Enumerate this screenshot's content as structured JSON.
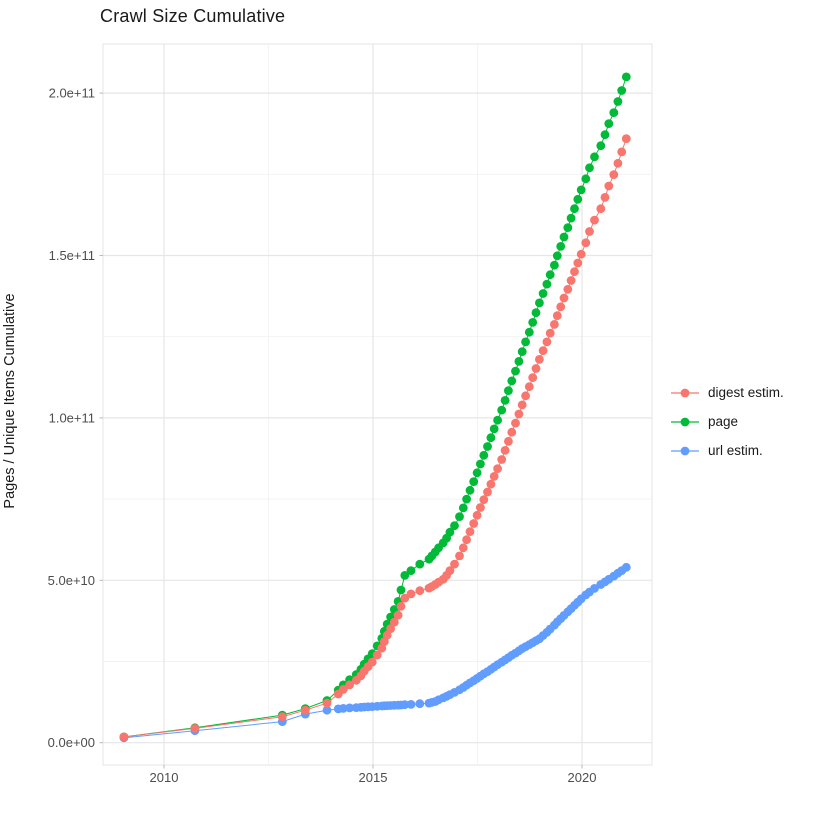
{
  "title": "Crawl Size Cumulative",
  "axes": {
    "y_label": "Pages / Unique Items Cumulative",
    "x_tick_labels": [
      "2010",
      "2015",
      "2020"
    ],
    "y_tick_labels": [
      "0.0e+00",
      "5.0e+10",
      "1.0e+11",
      "1.5e+11",
      "2.0e+11"
    ]
  },
  "legend": {
    "items": [
      {
        "label": "digest estim.",
        "color": "#F8766D"
      },
      {
        "label": "page",
        "color": "#00BA38"
      },
      {
        "label": "url estim.",
        "color": "#619CFF"
      }
    ]
  },
  "colors": {
    "digest": "#F8766D",
    "page": "#00BA38",
    "url": "#619CFF",
    "grid_major": "#E6E6E6",
    "grid_minor": "#F2F2F2",
    "panel_border": "#E4E4E4",
    "tick_mark": "#B8B8B8",
    "tick_text": "#4d4d4d",
    "title_text": "#1a1a1a"
  },
  "chart_data": {
    "type": "scatter",
    "title": "Crawl Size Cumulative",
    "xlabel": "",
    "ylabel": "Pages / Unique Items Cumulative",
    "legend_position": "right",
    "grid": true,
    "value_unit": "1e9 (values stored in billions)",
    "xlim": [
      2008.45,
      2021.65
    ],
    "ylim": [
      -8000000000,
      215000000000
    ],
    "x_ticks": {
      "major": [
        2010,
        2015,
        2020
      ],
      "minor": [
        2012.5,
        2017.5
      ],
      "labels": [
        "2010",
        "2015",
        "2020"
      ]
    },
    "y_ticks": {
      "major": [
        0,
        50,
        100,
        150,
        200
      ],
      "minor": [
        25,
        75,
        125,
        175
      ],
      "labels": [
        "0.0e+00",
        "5.0e+10",
        "1.0e+11",
        "1.5e+11",
        "2.0e+11"
      ]
    },
    "years": [
      2009.04,
      2010.74,
      2012.83,
      2013.38,
      2013.9,
      2014.17,
      2014.29,
      2014.44,
      2014.6,
      2014.71,
      2014.79,
      2014.88,
      2014.98,
      2015.1,
      2015.21,
      2015.27,
      2015.34,
      2015.42,
      2015.51,
      2015.6,
      2015.67,
      2015.76,
      2015.91,
      2016.12,
      2016.34,
      2016.41,
      2016.49,
      2016.57,
      2016.68,
      2016.76,
      2016.84,
      2016.95,
      2017.07,
      2017.16,
      2017.24,
      2017.32,
      2017.41,
      2017.49,
      2017.57,
      2017.65,
      2017.74,
      2017.82,
      2017.9,
      2017.98,
      2018.08,
      2018.16,
      2018.24,
      2018.32,
      2018.41,
      2018.49,
      2018.57,
      2018.65,
      2018.74,
      2018.82,
      2018.9,
      2018.98,
      2019.07,
      2019.16,
      2019.24,
      2019.34,
      2019.41,
      2019.49,
      2019.57,
      2019.66,
      2019.74,
      2019.82,
      2019.9,
      2019.98,
      2020.09,
      2020.18,
      2020.3,
      2020.45,
      2020.55,
      2020.64,
      2020.76,
      2020.86,
      2020.95,
      2021.06
    ],
    "series": [
      {
        "name": "digest estim.",
        "color": "#F8766D",
        "values": [
          1.8,
          4.4,
          8.0,
          10.0,
          12.2,
          15.0,
          16.4,
          17.8,
          19.2,
          20.6,
          22.0,
          23.4,
          24.8,
          27.0,
          29.1,
          31.1,
          33.1,
          35.1,
          37.1,
          39.3,
          42.0,
          44.5,
          45.8,
          46.8,
          47.6,
          48.1,
          48.7,
          49.4,
          50.3,
          51.5,
          53.0,
          55.0,
          57.5,
          60.0,
          62.5,
          65.0,
          67.5,
          70.0,
          72.4,
          74.8,
          77.2,
          79.6,
          82.0,
          84.4,
          87.2,
          90.0,
          92.8,
          95.6,
          98.4,
          101.2,
          104.0,
          106.8,
          109.6,
          112.4,
          115.2,
          118.0,
          120.7,
          123.4,
          126.1,
          128.8,
          131.5,
          134.2,
          136.9,
          139.6,
          142.3,
          145.0,
          147.7,
          150.4,
          153.9,
          157.4,
          160.9,
          164.4,
          167.9,
          171.4,
          174.9,
          178.4,
          181.9,
          186.0
        ]
      },
      {
        "name": "page",
        "color": "#00BA38",
        "values": [
          1.8,
          4.6,
          8.5,
          10.5,
          13.0,
          16.2,
          17.8,
          19.4,
          21.0,
          22.6,
          24.2,
          25.8,
          27.4,
          29.8,
          32.1,
          34.3,
          36.5,
          38.7,
          41.0,
          43.5,
          47.0,
          51.5,
          53.0,
          55.0,
          56.5,
          57.5,
          58.7,
          60.0,
          61.5,
          63.0,
          64.8,
          66.8,
          69.6,
          72.3,
          75.0,
          77.7,
          80.4,
          83.1,
          85.8,
          88.5,
          91.2,
          93.9,
          96.6,
          99.3,
          102.4,
          105.4,
          108.4,
          111.4,
          114.4,
          117.4,
          120.4,
          123.4,
          126.4,
          129.4,
          132.4,
          135.4,
          138.3,
          141.2,
          144.1,
          147.0,
          149.9,
          152.8,
          155.7,
          158.6,
          161.5,
          164.4,
          167.3,
          170.2,
          173.6,
          177.0,
          180.4,
          183.8,
          187.2,
          190.6,
          194.0,
          197.4,
          200.8,
          205.0
        ]
      },
      {
        "name": "url estim.",
        "color": "#619CFF",
        "values": [
          1.5,
          3.7,
          6.5,
          8.8,
          10.0,
          10.4,
          10.55,
          10.7,
          10.8,
          10.9,
          11.0,
          11.05,
          11.1,
          11.2,
          11.3,
          11.35,
          11.4,
          11.45,
          11.5,
          11.55,
          11.6,
          11.7,
          11.8,
          12.0,
          12.2,
          12.4,
          12.7,
          13.2,
          13.8,
          14.3,
          14.8,
          15.5,
          16.3,
          17.0,
          17.7,
          18.4,
          19.1,
          19.8,
          20.5,
          21.2,
          21.9,
          22.6,
          23.3,
          24.0,
          24.8,
          25.5,
          26.2,
          26.9,
          27.6,
          28.3,
          29.0,
          29.6,
          30.2,
          30.8,
          31.4,
          32.0,
          33.0,
          34.0,
          35.0,
          36.2,
          37.2,
          38.2,
          39.2,
          40.3,
          41.3,
          42.3,
          43.3,
          44.3,
          45.5,
          46.4,
          47.5,
          48.7,
          49.5,
          50.3,
          51.3,
          52.2,
          53.0,
          54.0
        ]
      }
    ]
  }
}
